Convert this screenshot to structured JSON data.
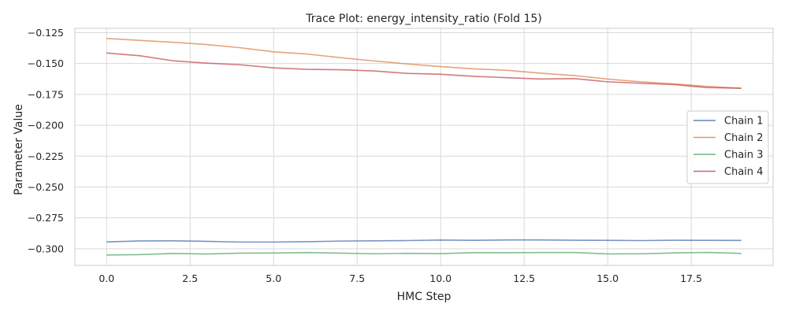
{
  "chart_data": {
    "type": "line",
    "title": "Trace Plot: energy_intensity_ratio (Fold 15)",
    "xlabel": "HMC Step",
    "ylabel": "Parameter Value",
    "xlim": [
      -0.95,
      19.95
    ],
    "ylim": [
      -0.3135,
      -0.1215
    ],
    "xticks": [
      0.0,
      2.5,
      5.0,
      7.5,
      10.0,
      12.5,
      15.0,
      17.5
    ],
    "xtick_labels": [
      "0.0",
      "2.5",
      "5.0",
      "7.5",
      "10.0",
      "12.5",
      "15.0",
      "17.5"
    ],
    "yticks": [
      -0.125,
      -0.15,
      -0.175,
      -0.2,
      -0.225,
      -0.25,
      -0.275,
      -0.3
    ],
    "ytick_labels": [
      "−0.125",
      "−0.150",
      "−0.175",
      "−0.200",
      "−0.225",
      "−0.250",
      "−0.275",
      "−0.300"
    ],
    "grid": true,
    "legend_position": "center-right",
    "x": [
      0,
      1,
      2,
      3,
      4,
      5,
      6,
      7,
      8,
      9,
      10,
      11,
      12,
      13,
      14,
      15,
      16,
      17,
      18,
      19
    ],
    "series": [
      {
        "name": "Chain 1",
        "color": "#4c72b0",
        "values": [
          -0.2945,
          -0.2937,
          -0.2936,
          -0.294,
          -0.2946,
          -0.2946,
          -0.2943,
          -0.2938,
          -0.2936,
          -0.2934,
          -0.293,
          -0.2932,
          -0.2929,
          -0.2929,
          -0.2931,
          -0.2932,
          -0.2934,
          -0.2931,
          -0.2932,
          -0.2933
        ]
      },
      {
        "name": "Chain 2",
        "color": "#dd8452",
        "values": [
          -0.1297,
          -0.1313,
          -0.1328,
          -0.1346,
          -0.1372,
          -0.1405,
          -0.1423,
          -0.1452,
          -0.1479,
          -0.1503,
          -0.1525,
          -0.1543,
          -0.1555,
          -0.1578,
          -0.1597,
          -0.1626,
          -0.1648,
          -0.1665,
          -0.1686,
          -0.17
        ]
      },
      {
        "name": "Chain 3",
        "color": "#55a868",
        "values": [
          -0.3051,
          -0.3048,
          -0.3038,
          -0.3043,
          -0.3036,
          -0.3035,
          -0.3031,
          -0.3036,
          -0.3041,
          -0.3037,
          -0.304,
          -0.3032,
          -0.3032,
          -0.3031,
          -0.3031,
          -0.3042,
          -0.3041,
          -0.3034,
          -0.303,
          -0.3038
        ]
      },
      {
        "name": "Chain 4",
        "color": "#c44e52",
        "values": [
          -0.1415,
          -0.1437,
          -0.1478,
          -0.1497,
          -0.151,
          -0.1535,
          -0.1547,
          -0.155,
          -0.156,
          -0.158,
          -0.1587,
          -0.1604,
          -0.1615,
          -0.1625,
          -0.1622,
          -0.1648,
          -0.166,
          -0.1671,
          -0.1695,
          -0.17
        ]
      }
    ]
  }
}
